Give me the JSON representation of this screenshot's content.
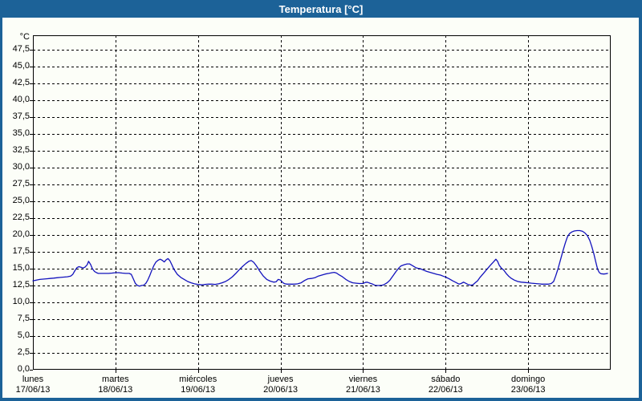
{
  "panel": {
    "title": "Temperatura [°C]"
  },
  "colors": {
    "titlebar_bg": "#1c6298",
    "border": "#1c6298",
    "panel_bg": "#fcfef8",
    "title_text": "#ffffff",
    "axis": "#000000",
    "grid": "#000000",
    "series_line": "#1212bd"
  },
  "chart_data": {
    "type": "line",
    "title": "Temperatura [°C]",
    "legend": "none",
    "grid": "dashed",
    "y_axis": {
      "unit": "°C",
      "min": 0,
      "max": 49.6,
      "tick_step": 2.5,
      "tick_labels": [
        "0,0",
        "2,5",
        "5,0",
        "7,5",
        "10,0",
        "12,5",
        "15,0",
        "17,5",
        "20,0",
        "22,5",
        "25,0",
        "27,5",
        "30,0",
        "32,5",
        "35,0",
        "37,5",
        "40,0",
        "42,5",
        "45,0",
        "47,5"
      ]
    },
    "x_axis": {
      "span_days": 7,
      "tick_labels": [
        {
          "weekday": "lunes",
          "date": "17/06/13"
        },
        {
          "weekday": "martes",
          "date": "18/06/13"
        },
        {
          "weekday": "miércoles",
          "date": "19/06/13"
        },
        {
          "weekday": "jueves",
          "date": "20/06/13"
        },
        {
          "weekday": "viernes",
          "date": "21/06/13"
        },
        {
          "weekday": "sábado",
          "date": "22/06/13"
        },
        {
          "weekday": "domingo",
          "date": "23/06/13"
        }
      ]
    },
    "series": [
      {
        "name": "Temperatura",
        "unit": "°C",
        "color": "#1212bd",
        "points_hours_temp": [
          [
            0,
            13.2
          ],
          [
            1,
            13.3
          ],
          [
            2,
            13.4
          ],
          [
            3,
            13.45
          ],
          [
            4,
            13.5
          ],
          [
            5,
            13.55
          ],
          [
            6,
            13.6
          ],
          [
            7,
            13.65
          ],
          [
            8,
            13.7
          ],
          [
            9,
            13.75
          ],
          [
            10,
            13.8
          ],
          [
            11,
            13.9
          ],
          [
            11.6,
            14.15
          ],
          [
            12.2,
            14.7
          ],
          [
            12.8,
            15.15
          ],
          [
            13.4,
            15.3
          ],
          [
            14,
            15.2
          ],
          [
            14.6,
            15.1
          ],
          [
            15.2,
            15.25
          ],
          [
            15.8,
            15.6
          ],
          [
            16.2,
            16.1
          ],
          [
            16.8,
            15.6
          ],
          [
            17.3,
            15.0
          ],
          [
            17.9,
            14.6
          ],
          [
            18.5,
            14.4
          ],
          [
            19,
            14.3
          ],
          [
            20,
            14.3
          ],
          [
            21,
            14.3
          ],
          [
            22,
            14.3
          ],
          [
            23,
            14.35
          ],
          [
            24,
            14.4
          ],
          [
            25,
            14.4
          ],
          [
            26,
            14.35
          ],
          [
            27,
            14.3
          ],
          [
            28,
            14.3
          ],
          [
            28.6,
            14.15
          ],
          [
            29.2,
            13.5
          ],
          [
            29.8,
            12.8
          ],
          [
            30.4,
            12.5
          ],
          [
            31,
            12.4
          ],
          [
            31.6,
            12.5
          ],
          [
            32.2,
            12.55
          ],
          [
            32.8,
            12.8
          ],
          [
            33.4,
            13.3
          ],
          [
            34,
            14.0
          ],
          [
            34.6,
            14.8
          ],
          [
            35.2,
            15.5
          ],
          [
            35.8,
            16.0
          ],
          [
            36.4,
            16.25
          ],
          [
            37,
            16.4
          ],
          [
            37.6,
            16.25
          ],
          [
            38.2,
            16.0
          ],
          [
            38.8,
            16.35
          ],
          [
            39.3,
            16.5
          ],
          [
            39.8,
            16.2
          ],
          [
            40.4,
            15.6
          ],
          [
            41,
            14.9
          ],
          [
            42,
            14.15
          ],
          [
            43,
            13.7
          ],
          [
            44,
            13.4
          ],
          [
            45,
            13.1
          ],
          [
            46,
            12.9
          ],
          [
            47,
            12.75
          ],
          [
            48,
            12.65
          ],
          [
            49,
            12.6
          ],
          [
            50,
            12.65
          ],
          [
            51,
            12.7
          ],
          [
            52,
            12.7
          ],
          [
            53,
            12.65
          ],
          [
            54,
            12.75
          ],
          [
            55,
            12.9
          ],
          [
            56,
            13.1
          ],
          [
            57,
            13.4
          ],
          [
            58,
            13.8
          ],
          [
            59,
            14.3
          ],
          [
            60,
            14.85
          ],
          [
            61,
            15.35
          ],
          [
            62,
            15.8
          ],
          [
            62.8,
            16.1
          ],
          [
            63.5,
            16.2
          ],
          [
            64.2,
            15.95
          ],
          [
            65,
            15.4
          ],
          [
            66,
            14.6
          ],
          [
            67,
            13.9
          ],
          [
            68,
            13.4
          ],
          [
            69,
            13.15
          ],
          [
            70,
            13.0
          ],
          [
            70.7,
            13.05
          ],
          [
            71.3,
            13.4
          ],
          [
            72,
            13.3
          ],
          [
            72.7,
            12.9
          ],
          [
            73.3,
            12.75
          ],
          [
            74,
            12.7
          ],
          [
            75,
            12.7
          ],
          [
            76,
            12.7
          ],
          [
            77,
            12.75
          ],
          [
            78,
            12.9
          ],
          [
            79,
            13.25
          ],
          [
            80,
            13.5
          ],
          [
            81,
            13.55
          ],
          [
            82,
            13.65
          ],
          [
            83,
            13.9
          ],
          [
            84,
            14.05
          ],
          [
            85,
            14.2
          ],
          [
            86,
            14.3
          ],
          [
            87,
            14.4
          ],
          [
            87.6,
            14.45
          ],
          [
            88.3,
            14.35
          ],
          [
            89,
            14.1
          ],
          [
            90,
            13.8
          ],
          [
            91,
            13.4
          ],
          [
            92,
            13.1
          ],
          [
            93,
            12.9
          ],
          [
            94,
            12.85
          ],
          [
            95,
            12.8
          ],
          [
            96,
            12.8
          ],
          [
            96.6,
            12.95
          ],
          [
            97.2,
            13.0
          ],
          [
            98,
            12.85
          ],
          [
            98.8,
            12.7
          ],
          [
            99.4,
            12.55
          ],
          [
            100,
            12.5
          ],
          [
            100.7,
            12.5
          ],
          [
            101.5,
            12.55
          ],
          [
            102,
            12.6
          ],
          [
            103,
            12.9
          ],
          [
            103.8,
            13.3
          ],
          [
            104.8,
            14.0
          ],
          [
            105.6,
            14.6
          ],
          [
            106.4,
            15.1
          ],
          [
            107,
            15.4
          ],
          [
            108,
            15.6
          ],
          [
            108.8,
            15.7
          ],
          [
            109.5,
            15.7
          ],
          [
            110.5,
            15.4
          ],
          [
            111.3,
            15.15
          ],
          [
            112,
            15.05
          ],
          [
            112.6,
            15.0
          ],
          [
            113.5,
            14.8
          ],
          [
            114.5,
            14.6
          ],
          [
            115.5,
            14.45
          ],
          [
            116.5,
            14.3
          ],
          [
            117.5,
            14.15
          ],
          [
            118.5,
            14.05
          ],
          [
            119.5,
            13.85
          ],
          [
            120,
            13.75
          ],
          [
            121,
            13.5
          ],
          [
            122,
            13.2
          ],
          [
            123,
            12.95
          ],
          [
            123.9,
            12.7
          ],
          [
            124.5,
            12.8
          ],
          [
            125.2,
            13.0
          ],
          [
            125.8,
            12.85
          ],
          [
            126.5,
            12.65
          ],
          [
            127.3,
            12.55
          ],
          [
            127.9,
            12.6
          ],
          [
            128.6,
            12.9
          ],
          [
            129.3,
            13.2
          ],
          [
            130,
            13.7
          ],
          [
            131,
            14.3
          ],
          [
            132,
            14.9
          ],
          [
            133,
            15.5
          ],
          [
            134,
            16.05
          ],
          [
            134.6,
            16.4
          ],
          [
            135.1,
            16.1
          ],
          [
            135.6,
            15.5
          ],
          [
            136.2,
            15.1
          ],
          [
            136.9,
            14.8
          ],
          [
            137.6,
            14.3
          ],
          [
            138.3,
            13.9
          ],
          [
            139,
            13.6
          ],
          [
            140,
            13.3
          ],
          [
            141,
            13.1
          ],
          [
            142,
            13.0
          ],
          [
            143,
            12.95
          ],
          [
            144,
            12.9
          ],
          [
            145,
            12.85
          ],
          [
            146,
            12.8
          ],
          [
            147,
            12.75
          ],
          [
            148,
            12.7
          ],
          [
            149,
            12.7
          ],
          [
            150,
            12.7
          ],
          [
            150.7,
            12.8
          ],
          [
            151.4,
            13.1
          ],
          [
            152,
            13.9
          ],
          [
            152.7,
            15.0
          ],
          [
            153.4,
            16.3
          ],
          [
            154.1,
            17.6
          ],
          [
            154.8,
            18.8
          ],
          [
            155.4,
            19.7
          ],
          [
            156,
            20.2
          ],
          [
            156.7,
            20.45
          ],
          [
            157.4,
            20.6
          ],
          [
            158.2,
            20.65
          ],
          [
            159,
            20.65
          ],
          [
            159.8,
            20.55
          ],
          [
            160.5,
            20.3
          ],
          [
            161.2,
            19.9
          ],
          [
            161.9,
            19.2
          ],
          [
            162.5,
            18.3
          ],
          [
            163.1,
            17.2
          ],
          [
            163.7,
            15.9
          ],
          [
            164.2,
            14.9
          ],
          [
            164.7,
            14.4
          ],
          [
            165.2,
            14.25
          ],
          [
            166,
            14.2
          ],
          [
            166.6,
            14.25
          ],
          [
            167.1,
            14.3
          ]
        ]
      }
    ]
  }
}
